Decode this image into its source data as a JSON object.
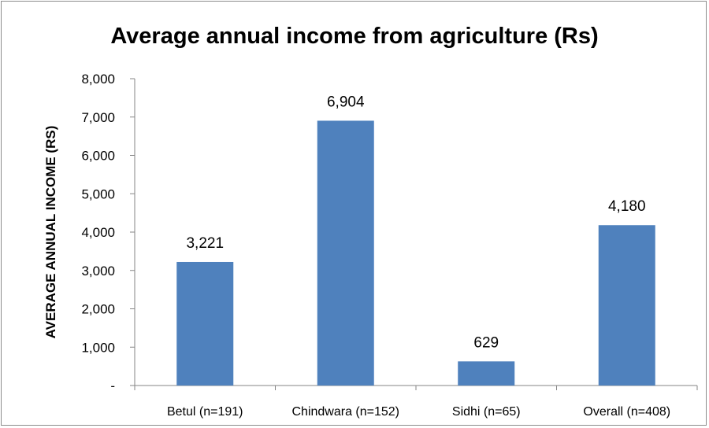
{
  "chart_data": {
    "type": "bar",
    "title": "Average annual income from agriculture (Rs)",
    "xlabel": "",
    "ylabel": "AVERAGE ANNUAL INCOME (RS)",
    "categories": [
      "Betul (n=191)",
      "Chindwara (n=152)",
      "Sidhi (n=65)",
      "Overall (n=408)"
    ],
    "values": [
      3221,
      6904,
      629,
      4180
    ],
    "data_labels": [
      "3,221",
      "6,904",
      "629",
      "4,180"
    ],
    "ylim": [
      0,
      8000
    ],
    "y_ticks": [
      0,
      1000,
      2000,
      3000,
      4000,
      5000,
      6000,
      7000,
      8000
    ],
    "y_tick_labels": [
      "-",
      "1,000",
      "2,000",
      "3,000",
      "4,000",
      "5,000",
      "6,000",
      "7,000",
      "8,000"
    ],
    "bar_color": "#4f81bd",
    "grid": false,
    "legend": "none"
  }
}
